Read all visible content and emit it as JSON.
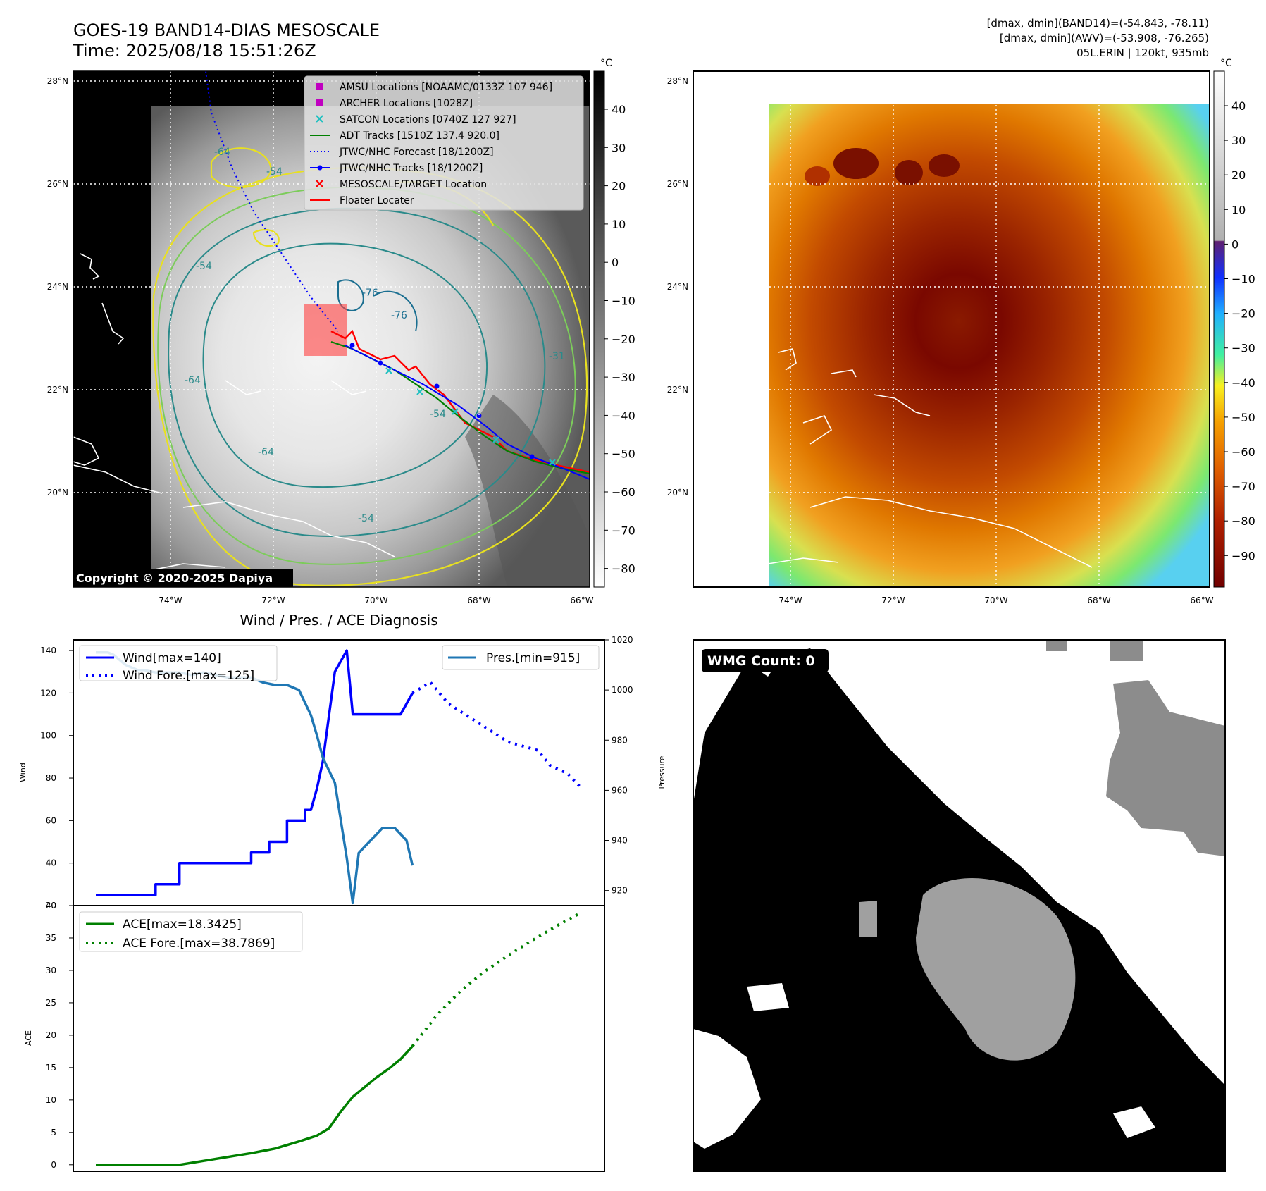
{
  "panel1": {
    "title": "GOES-19 BAND14-DIAS MESOSCALE",
    "time": "Time: 2025/08/18 15:51:26Z",
    "copyright": "Copyright © 2020-2025 Dapiya",
    "unit": "°C",
    "lat_labels": [
      "28°N",
      "26°N",
      "24°N",
      "22°N",
      "20°N"
    ],
    "lon_labels": [
      "74°W",
      "72°W",
      "70°W",
      "68°W",
      "66°W"
    ],
    "colorbar_ticks": [
      "40",
      "30",
      "20",
      "10",
      "0",
      "−10",
      "−20",
      "−30",
      "−40",
      "−50",
      "−60",
      "−70",
      "−80"
    ],
    "legend": [
      {
        "label": "AMSU Locations [NOAAMC/0133Z 107 946]",
        "color": "#c000c0",
        "icon": "square-marker-icon"
      },
      {
        "label": "ARCHER Locations [1028Z]",
        "color": "#c000c0",
        "icon": "square-marker-icon"
      },
      {
        "label": "SATCON Locations [0740Z 127 927]",
        "color": "#20c0c0",
        "icon": "x-marker-icon"
      },
      {
        "label": "ADT Tracks [1510Z 137.4 920.0]",
        "color": "#008000",
        "icon": "solid-line-icon"
      },
      {
        "label": "JTWC/NHC Forecast [18/1200Z]",
        "color": "#0000ff",
        "icon": "dotted-line-icon"
      },
      {
        "label": "JTWC/NHC Tracks [18/1200Z]",
        "color": "#0000ff",
        "icon": "dot-line-icon"
      },
      {
        "label": "MESOSCALE/TARGET Location",
        "color": "#ff0000",
        "icon": "x-marker-icon"
      },
      {
        "label": "Floater Locater",
        "color": "#ff0000",
        "icon": "solid-line-icon"
      }
    ],
    "contour_labels": [
      "-54",
      "-64",
      "-76",
      "-76",
      "-54",
      "-64",
      "-64",
      "-54",
      "-54",
      "-31"
    ]
  },
  "panel2": {
    "info": [
      "[dmax, dmin](BAND14)=(-54.843, -78.11)",
      "[dmax, dmin](AWV)=(-53.908, -76.265)",
      "05L.ERIN | 120kt, 935mb"
    ],
    "unit": "°C",
    "lat_labels": [
      "28°N",
      "26°N",
      "24°N",
      "22°N",
      "20°N"
    ],
    "lon_labels": [
      "74°W",
      "72°W",
      "70°W",
      "68°W",
      "66°W"
    ],
    "colorbar_ticks": [
      "40",
      "30",
      "20",
      "10",
      "0",
      "−10",
      "−20",
      "−30",
      "−40",
      "−50",
      "−60",
      "−70",
      "−80",
      "−90"
    ]
  },
  "panel3": {
    "title": "Wind / Pres. / ACE Diagnosis",
    "legend_wind": "Wind[max=140]",
    "legend_wind_fore": "Wind Fore.[max=125]",
    "legend_pres": "Pres.[min=915]",
    "legend_ace": "ACE[max=18.3425]",
    "legend_ace_fore": "ACE Fore.[max=38.7869]",
    "ylabel_wind": "Wind",
    "ylabel_pres": "Pressure",
    "ylabel_ace": "ACE"
  },
  "panel4": {
    "badge": "WMG Count: 0"
  },
  "chart_data": [
    {
      "type": "line",
      "ylabel": "Wind",
      "ylim": [
        20,
        145
      ],
      "yticks": [
        20,
        40,
        60,
        80,
        100,
        120,
        140
      ],
      "series": [
        {
          "name": "Wind[max=140]",
          "style": "solid",
          "color": "#0000ff",
          "x": [
            0,
            6,
            6,
            10,
            10,
            14,
            14,
            24,
            24,
            26,
            26,
            29,
            29,
            32,
            32,
            35,
            35,
            36,
            37,
            38,
            40,
            40,
            42,
            43,
            45,
            47,
            49,
            51,
            53
          ],
          "values": [
            25,
            25,
            25,
            25,
            30,
            30,
            40,
            40,
            40,
            40,
            45,
            45,
            50,
            50,
            60,
            60,
            65,
            65,
            75,
            88,
            130,
            130,
            140,
            110,
            110,
            110,
            110,
            110,
            120
          ]
        },
        {
          "name": "Wind Fore.[max=125]",
          "style": "dotted",
          "color": "#0000ff",
          "x": [
            53,
            56,
            59,
            64,
            69,
            74,
            76,
            79,
            81
          ],
          "values": [
            120,
            125,
            115,
            106,
            97,
            93,
            86,
            82,
            76
          ]
        }
      ]
    },
    {
      "type": "line",
      "ylabel": "Pressure",
      "ylim": [
        914,
        1020
      ],
      "yticks": [
        920,
        940,
        960,
        980,
        1000,
        1020
      ],
      "series": [
        {
          "name": "Pres.[min=915]",
          "style": "solid",
          "color": "#1f77b4",
          "x": [
            0,
            1,
            2,
            3,
            5,
            7,
            8,
            10,
            14,
            16,
            18,
            20,
            22,
            24,
            25,
            26,
            28,
            30,
            32,
            34,
            36,
            37,
            38,
            40,
            42,
            43,
            44,
            46,
            48,
            50,
            52,
            53
          ],
          "values": [
            1015,
            1015,
            1015,
            1014,
            1010,
            1008,
            1008,
            1007,
            1007,
            1006,
            1007,
            1006,
            1005,
            1005,
            1005,
            1005,
            1003,
            1002,
            1002,
            1000,
            990,
            982,
            973,
            963,
            933,
            915,
            935,
            940,
            945,
            945,
            940,
            930
          ]
        }
      ]
    },
    {
      "type": "line",
      "ylabel": "ACE",
      "ylim": [
        -1,
        40
      ],
      "yticks": [
        0,
        5,
        10,
        15,
        20,
        25,
        30,
        35,
        40
      ],
      "series": [
        {
          "name": "ACE[max=18.3425]",
          "style": "solid",
          "color": "#008000",
          "x": [
            0,
            5,
            10,
            14,
            18,
            22,
            26,
            30,
            34,
            37,
            39,
            41,
            43,
            45,
            47,
            49,
            51,
            53
          ],
          "values": [
            0,
            0,
            0,
            0,
            0.6,
            1.2,
            1.8,
            2.5,
            3.6,
            4.5,
            5.6,
            8.2,
            10.5,
            12,
            13.5,
            14.8,
            16.3,
            18.3
          ]
        },
        {
          "name": "ACE Fore.[max=38.7869]",
          "style": "dotted",
          "color": "#008000",
          "x": [
            53,
            57,
            61,
            65,
            69,
            73,
            77,
            81
          ],
          "values": [
            18.3,
            23,
            26.8,
            29.8,
            32.3,
            34.6,
            36.8,
            38.8
          ]
        }
      ]
    }
  ]
}
